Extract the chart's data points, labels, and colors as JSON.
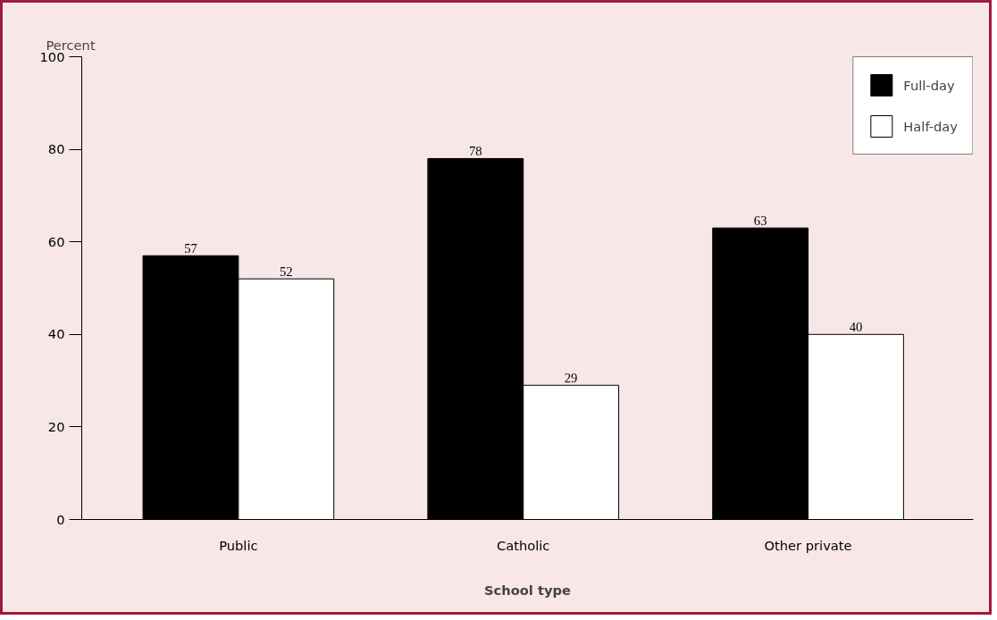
{
  "chart_data": {
    "type": "bar",
    "ylabel": "Percent",
    "xlabel": "School type",
    "categories": [
      "Public",
      "Catholic",
      "Other private"
    ],
    "series": [
      {
        "name": "Full-day",
        "color": "#000000",
        "values": [
          57,
          78,
          63
        ]
      },
      {
        "name": "Half-day",
        "color": "#ffffff",
        "values": [
          52,
          29,
          40
        ]
      }
    ],
    "ylim": [
      0,
      100
    ],
    "yticks": [
      0,
      20,
      40,
      60,
      80,
      100
    ],
    "grid": false,
    "legend": "top right",
    "data_labels": true
  }
}
